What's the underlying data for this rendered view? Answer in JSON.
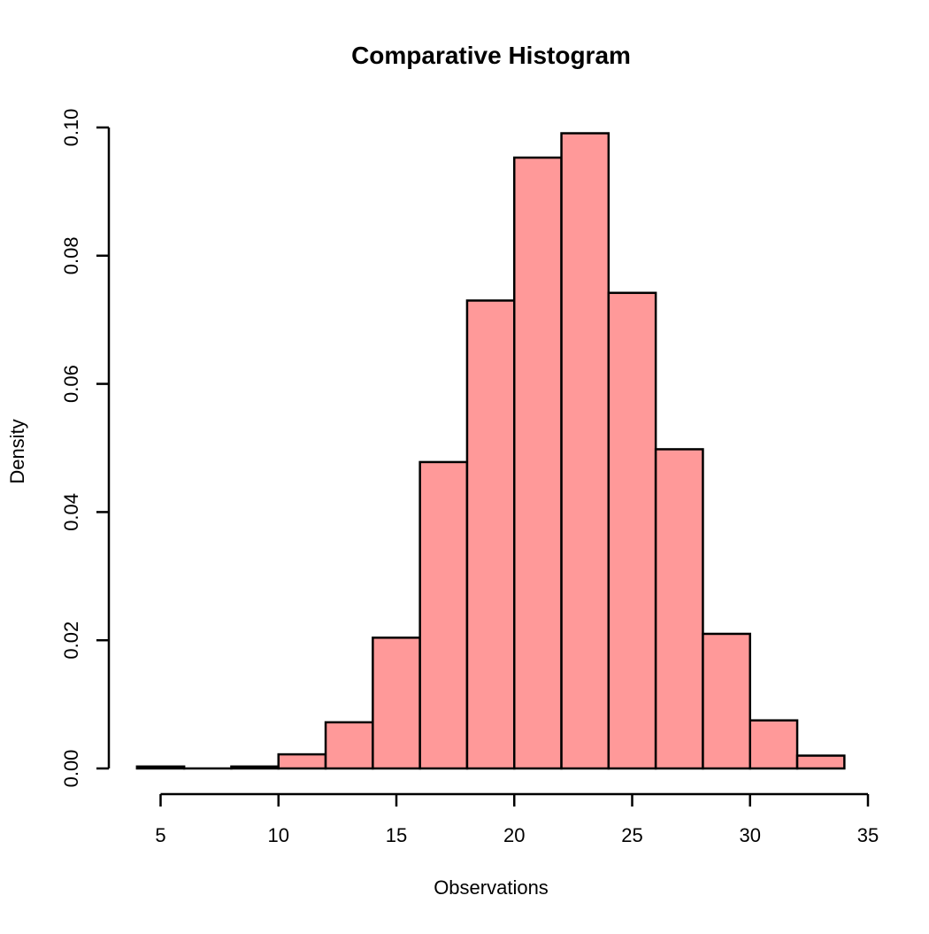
{
  "chart_data": {
    "type": "bar",
    "title": "Comparative Histogram",
    "xlabel": "Observations",
    "ylabel": "Density",
    "xlim": [
      4,
      34
    ],
    "ylim": [
      0,
      0.1
    ],
    "xticks": [
      5,
      10,
      15,
      20,
      25,
      30,
      35
    ],
    "yticks": [
      "0.00",
      "0.02",
      "0.04",
      "0.06",
      "0.08",
      "0.10"
    ],
    "bin_width": 2,
    "bins": [
      {
        "x0": 4,
        "x1": 6,
        "density": 0.0003
      },
      {
        "x0": 6,
        "x1": 8,
        "density": 0.0
      },
      {
        "x0": 8,
        "x1": 10,
        "density": 0.0003
      },
      {
        "x0": 10,
        "x1": 12,
        "density": 0.0022
      },
      {
        "x0": 12,
        "x1": 14,
        "density": 0.0072
      },
      {
        "x0": 14,
        "x1": 16,
        "density": 0.0204
      },
      {
        "x0": 16,
        "x1": 18,
        "density": 0.0478
      },
      {
        "x0": 18,
        "x1": 20,
        "density": 0.073
      },
      {
        "x0": 20,
        "x1": 22,
        "density": 0.0953
      },
      {
        "x0": 22,
        "x1": 24,
        "density": 0.0991
      },
      {
        "x0": 24,
        "x1": 26,
        "density": 0.0742
      },
      {
        "x0": 26,
        "x1": 28,
        "density": 0.0498
      },
      {
        "x0": 28,
        "x1": 30,
        "density": 0.021
      },
      {
        "x0": 30,
        "x1": 32,
        "density": 0.0075
      },
      {
        "x0": 32,
        "x1": 34,
        "density": 0.002
      }
    ],
    "bar_color": "#ff9999",
    "edge_color": "#000000",
    "grid": false,
    "legend": "none"
  }
}
